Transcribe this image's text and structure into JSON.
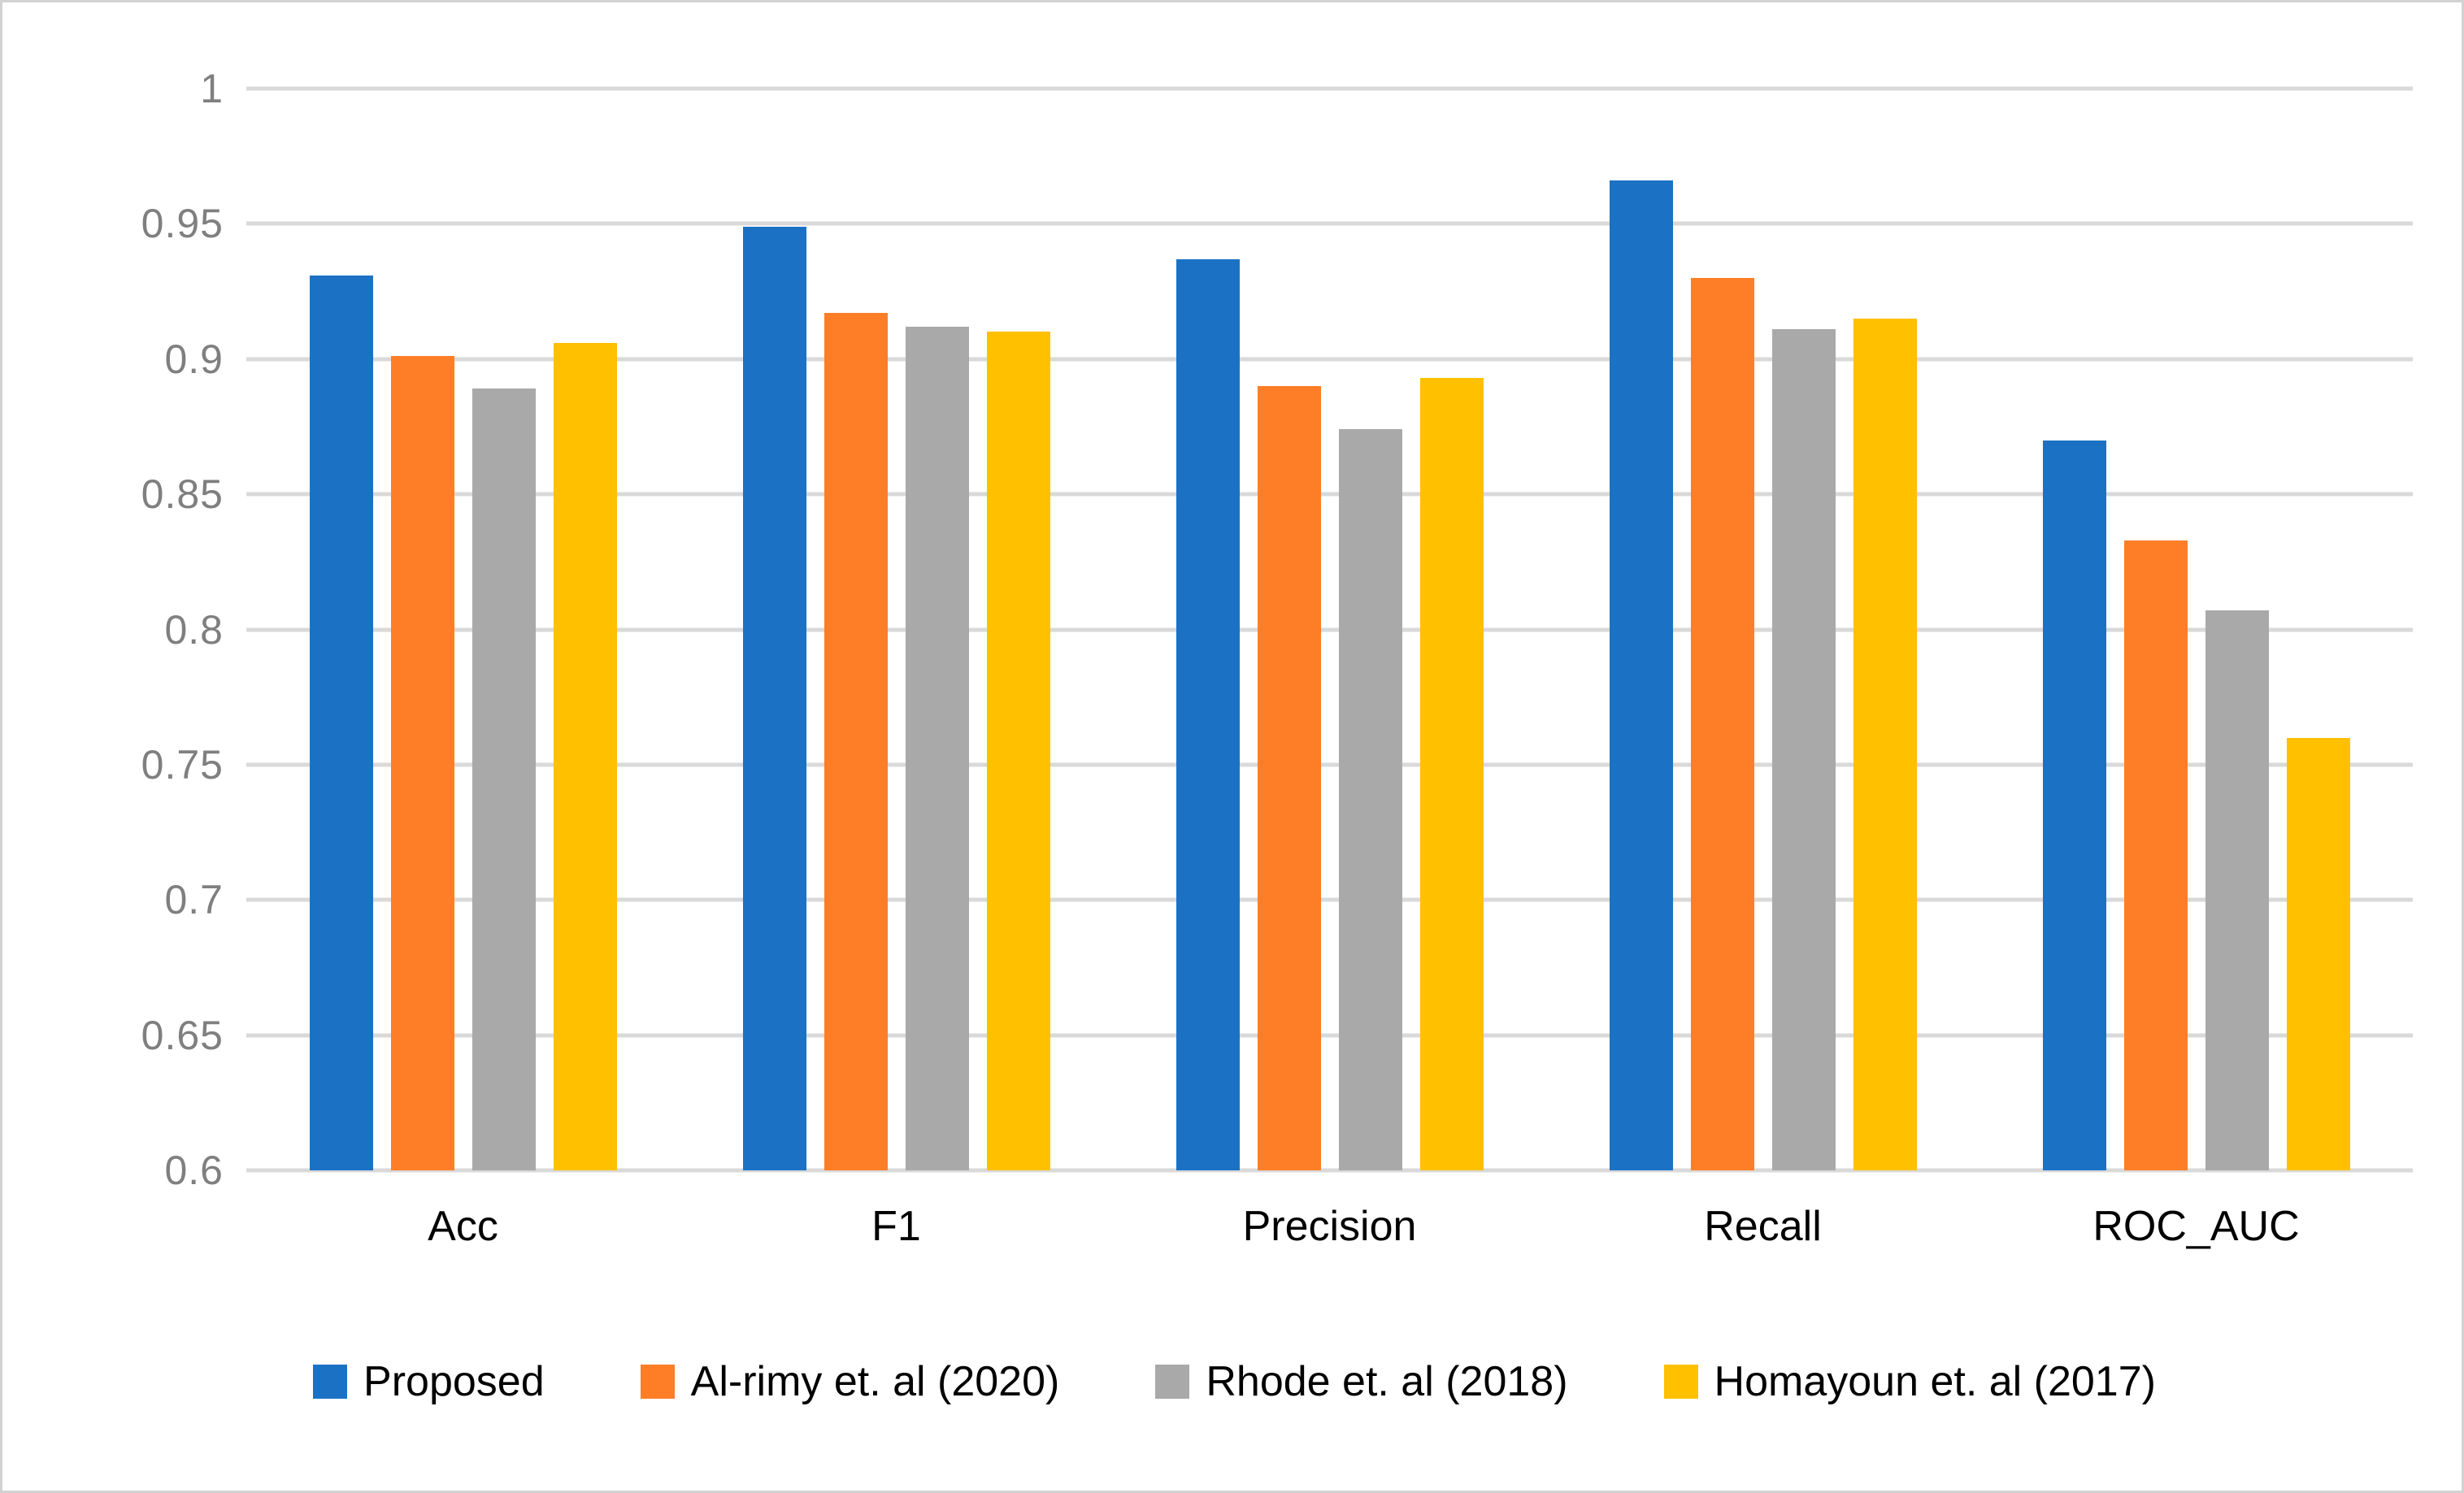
{
  "colors": {
    "background": "#ffffff",
    "frame_border": "#d2d2d2",
    "gridline": "#d9d9d9",
    "axis_text": "#7f7f7f",
    "series_blue": "#1b72c4",
    "series_orange": "#fd7e27",
    "series_gray": "#a9a9a9",
    "series_yellow": "#ffc000"
  },
  "chart_data": {
    "type": "bar",
    "title": "",
    "xlabel": "",
    "ylabel": "",
    "categories": [
      "Acc",
      "F1",
      "Precision",
      "Recall",
      "ROC_AUC"
    ],
    "series": [
      {
        "name": "Proposed",
        "color": "#1b72c4",
        "values": [
          0.931,
          0.949,
          0.937,
          0.966,
          0.87
        ]
      },
      {
        "name": "Al-rimy et. al (2020)",
        "color": "#fd7e27",
        "values": [
          0.901,
          0.917,
          0.89,
          0.93,
          0.833
        ]
      },
      {
        "name": "Rhode et. al (2018)",
        "color": "#a9a9a9",
        "values": [
          0.889,
          0.912,
          0.874,
          0.911,
          0.807
        ]
      },
      {
        "name": "Homayoun et. al (2017)",
        "color": "#ffc000",
        "values": [
          0.906,
          0.91,
          0.893,
          0.915,
          0.76
        ]
      }
    ],
    "ylim": [
      0.6,
      1.0
    ],
    "yticks": [
      {
        "label": "1",
        "value": 1.0
      },
      {
        "label": "0.95",
        "value": 0.95
      },
      {
        "label": "0.9",
        "value": 0.9
      },
      {
        "label": "0.85",
        "value": 0.85
      },
      {
        "label": "0.8",
        "value": 0.8
      },
      {
        "label": "0.75",
        "value": 0.75
      },
      {
        "label": "0.7",
        "value": 0.7
      },
      {
        "label": "0.65",
        "value": 0.65
      },
      {
        "label": "0.6",
        "value": 0.6
      }
    ],
    "grid": true,
    "legend_position": "bottom"
  }
}
